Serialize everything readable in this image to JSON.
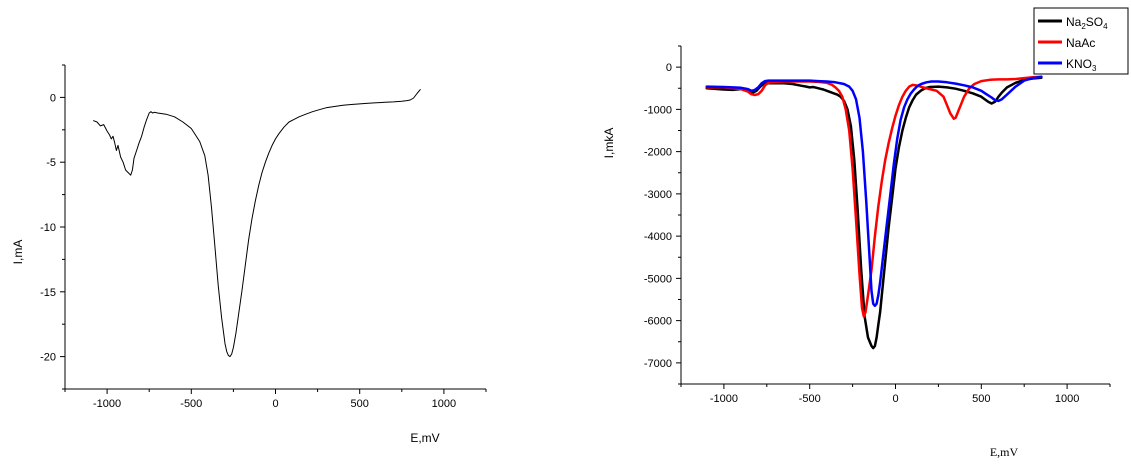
{
  "chart_data": [
    {
      "type": "line",
      "title": "",
      "xlabel": "E,mV",
      "ylabel": "I,mA",
      "xlim": [
        -1250,
        1250
      ],
      "ylim": [
        -22.5,
        2.5
      ],
      "xticks": [
        -1000,
        -500,
        0,
        500,
        1000
      ],
      "yticks": [
        0,
        -5,
        -10,
        -15,
        -20
      ],
      "grid": false,
      "legend": "none",
      "series": [
        {
          "color": "#000000",
          "x": [
            -1080,
            -1060,
            -1040,
            -1020,
            -1000,
            -985,
            -975,
            -965,
            -955,
            -945,
            -935,
            -920,
            -905,
            -890,
            -875,
            -860,
            -850,
            -840,
            -825,
            -810,
            -795,
            -780,
            -765,
            -750,
            -740,
            -730,
            -720,
            -700,
            -650,
            -600,
            -550,
            -500,
            -450,
            -420,
            -400,
            -380,
            -360,
            -340,
            -320,
            -300,
            -290,
            -280,
            -270,
            -260,
            -250,
            -235,
            -220,
            -200,
            -180,
            -160,
            -140,
            -120,
            -100,
            -80,
            -60,
            -40,
            -20,
            0,
            20,
            50,
            80,
            110,
            140,
            180,
            220,
            260,
            300,
            350,
            400,
            450,
            500,
            550,
            600,
            650,
            700,
            750,
            780,
            800,
            820,
            840,
            860
          ],
          "y": [
            -1.8,
            -1.9,
            -2.2,
            -2.1,
            -2.6,
            -2.9,
            -3.2,
            -3.0,
            -3.5,
            -4.1,
            -3.7,
            -4.6,
            -5.0,
            -5.6,
            -5.8,
            -6.0,
            -5.6,
            -4.7,
            -4.1,
            -3.5,
            -3.0,
            -2.3,
            -1.7,
            -1.2,
            -1.1,
            -1.2,
            -1.15,
            -1.2,
            -1.3,
            -1.5,
            -1.9,
            -2.4,
            -3.4,
            -4.5,
            -6.0,
            -8.5,
            -11.5,
            -14.5,
            -17.0,
            -19.0,
            -19.6,
            -19.9,
            -20.0,
            -19.8,
            -19.3,
            -18.2,
            -16.8,
            -15.0,
            -13.0,
            -11.0,
            -9.4,
            -8.0,
            -6.8,
            -5.8,
            -5.0,
            -4.3,
            -3.7,
            -3.2,
            -2.8,
            -2.3,
            -1.9,
            -1.7,
            -1.5,
            -1.3,
            -1.1,
            -0.95,
            -0.8,
            -0.7,
            -0.6,
            -0.55,
            -0.5,
            -0.45,
            -0.42,
            -0.38,
            -0.35,
            -0.3,
            -0.25,
            -0.2,
            -0.05,
            0.3,
            0.6
          ]
        }
      ]
    },
    {
      "type": "line",
      "title": "",
      "xlabel": "E,mV",
      "ylabel": "I,mkA",
      "xlim": [
        -1250,
        1250
      ],
      "ylim": [
        -7500,
        500
      ],
      "xticks": [
        -1000,
        -500,
        0,
        500,
        1000
      ],
      "yticks": [
        0,
        -1000,
        -2000,
        -3000,
        -4000,
        -5000,
        -6000,
        -7000
      ],
      "grid": false,
      "legend": "top-right",
      "series": [
        {
          "name": "Na2SO4",
          "color": "#000000",
          "x": [
            -1100,
            -1000,
            -950,
            -900,
            -870,
            -850,
            -830,
            -810,
            -790,
            -770,
            -750,
            -700,
            -650,
            -600,
            -550,
            -520,
            -500,
            -480,
            -460,
            -440,
            -420,
            -400,
            -380,
            -360,
            -340,
            -320,
            -300,
            -280,
            -260,
            -240,
            -220,
            -200,
            -180,
            -160,
            -140,
            -130,
            -120,
            -110,
            -100,
            -90,
            -80,
            -60,
            -40,
            -20,
            0,
            20,
            40,
            60,
            80,
            100,
            120,
            150,
            180,
            200,
            250,
            300,
            350,
            400,
            450,
            500,
            520,
            540,
            560,
            580,
            600,
            620,
            650,
            700,
            750,
            800,
            850
          ],
          "y": [
            -500,
            -530,
            -540,
            -520,
            -560,
            -580,
            -600,
            -560,
            -470,
            -400,
            -380,
            -380,
            -380,
            -400,
            -440,
            -460,
            -480,
            -470,
            -490,
            -510,
            -530,
            -560,
            -590,
            -620,
            -650,
            -700,
            -800,
            -1000,
            -1400,
            -2200,
            -3400,
            -4800,
            -5900,
            -6400,
            -6600,
            -6650,
            -6600,
            -6400,
            -6100,
            -5800,
            -5400,
            -4600,
            -3800,
            -3100,
            -2400,
            -1900,
            -1500,
            -1200,
            -950,
            -780,
            -650,
            -550,
            -490,
            -470,
            -460,
            -480,
            -510,
            -560,
            -620,
            -700,
            -760,
            -820,
            -860,
            -820,
            -700,
            -600,
            -480,
            -370,
            -300,
            -270,
            -250
          ]
        },
        {
          "name": "NaAc",
          "color": "#ff0000",
          "x": [
            -1100,
            -1000,
            -950,
            -900,
            -860,
            -840,
            -820,
            -800,
            -780,
            -760,
            -740,
            -700,
            -650,
            -600,
            -550,
            -500,
            -450,
            -400,
            -370,
            -350,
            -330,
            -310,
            -290,
            -270,
            -250,
            -230,
            -210,
            -195,
            -185,
            -175,
            -160,
            -140,
            -120,
            -100,
            -80,
            -60,
            -40,
            -20,
            0,
            20,
            40,
            60,
            80,
            100,
            130,
            160,
            200,
            240,
            280,
            300,
            320,
            340,
            350,
            360,
            380,
            400,
            430,
            460,
            500,
            550,
            600,
            650,
            700,
            750,
            800,
            850
          ],
          "y": [
            -480,
            -480,
            -500,
            -520,
            -580,
            -640,
            -660,
            -640,
            -560,
            -430,
            -370,
            -350,
            -340,
            -340,
            -340,
            -340,
            -350,
            -370,
            -420,
            -480,
            -560,
            -700,
            -1000,
            -1500,
            -2400,
            -3600,
            -4900,
            -5700,
            -5900,
            -5800,
            -5400,
            -4800,
            -4000,
            -3300,
            -2700,
            -2200,
            -1800,
            -1450,
            -1150,
            -900,
            -700,
            -560,
            -460,
            -420,
            -440,
            -480,
            -520,
            -560,
            -700,
            -900,
            -1100,
            -1220,
            -1200,
            -1100,
            -900,
            -700,
            -500,
            -400,
            -330,
            -300,
            -290,
            -290,
            -280,
            -260,
            -240,
            -230
          ]
        },
        {
          "name": "KNO3",
          "color": "#0000ff",
          "x": [
            -1100,
            -1000,
            -950,
            -900,
            -860,
            -840,
            -820,
            -800,
            -780,
            -760,
            -740,
            -700,
            -650,
            -600,
            -550,
            -500,
            -450,
            -400,
            -350,
            -300,
            -270,
            -250,
            -230,
            -210,
            -190,
            -170,
            -150,
            -140,
            -130,
            -120,
            -110,
            -100,
            -90,
            -70,
            -50,
            -30,
            -10,
            10,
            30,
            50,
            70,
            90,
            110,
            130,
            150,
            180,
            210,
            250,
            300,
            350,
            400,
            450,
            500,
            530,
            560,
            580,
            600,
            620,
            650,
            700,
            750,
            800,
            850
          ],
          "y": [
            -460,
            -470,
            -480,
            -490,
            -520,
            -560,
            -540,
            -480,
            -380,
            -330,
            -320,
            -320,
            -320,
            -320,
            -320,
            -320,
            -330,
            -340,
            -360,
            -400,
            -460,
            -560,
            -760,
            -1200,
            -2000,
            -3200,
            -4600,
            -5300,
            -5600,
            -5650,
            -5600,
            -5400,
            -5100,
            -4400,
            -3700,
            -3000,
            -2300,
            -1700,
            -1250,
            -950,
            -760,
            -620,
            -520,
            -440,
            -400,
            -360,
            -340,
            -340,
            -360,
            -390,
            -430,
            -480,
            -560,
            -640,
            -720,
            -780,
            -800,
            -760,
            -650,
            -460,
            -320,
            -260,
            -230
          ]
        }
      ],
      "legend_entries": [
        {
          "base": "Na",
          "sub1": "2",
          "mid": "SO",
          "sub2": "4",
          "color": "#000000"
        },
        {
          "base": "NaAc",
          "sub1": "",
          "mid": "",
          "sub2": "",
          "color": "#ff0000"
        },
        {
          "base": "KNO",
          "sub1": "3",
          "mid": "",
          "sub2": "",
          "color": "#0000ff"
        }
      ]
    }
  ]
}
